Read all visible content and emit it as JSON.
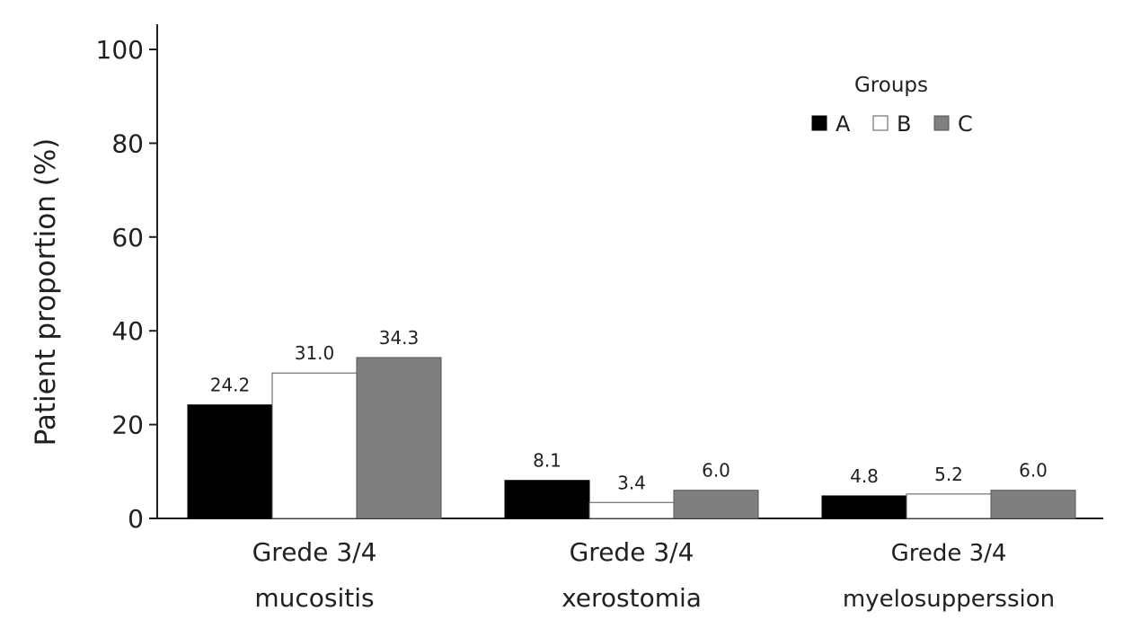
{
  "chart_data": {
    "type": "bar",
    "ylabel": "Patient proportion (%)",
    "ylim": [
      0,
      100
    ],
    "yticks": [
      0,
      20,
      40,
      60,
      80,
      100
    ],
    "categories": [
      [
        "Grede 3/4",
        "mucositis"
      ],
      [
        "Grede 3/4",
        "xerostomia"
      ],
      [
        "Grede 3/4",
        "myelosupperssion"
      ]
    ],
    "series": [
      {
        "name": "A",
        "values": [
          24.2,
          8.1,
          4.8
        ],
        "labels": [
          "24.2",
          "8.1",
          "4.8"
        ],
        "color": "#000000"
      },
      {
        "name": "B",
        "values": [
          31.0,
          3.4,
          5.2
        ],
        "labels": [
          "31.0",
          "3.4",
          "5.2"
        ],
        "color": "#ffffff"
      },
      {
        "name": "C",
        "values": [
          34.3,
          6.0,
          6.0
        ],
        "labels": [
          "34.3",
          "6.0",
          "6.0"
        ],
        "color": "#7f7f7f"
      }
    ],
    "legend": {
      "title": "Groups",
      "placement": "top-right"
    },
    "grid": false
  }
}
